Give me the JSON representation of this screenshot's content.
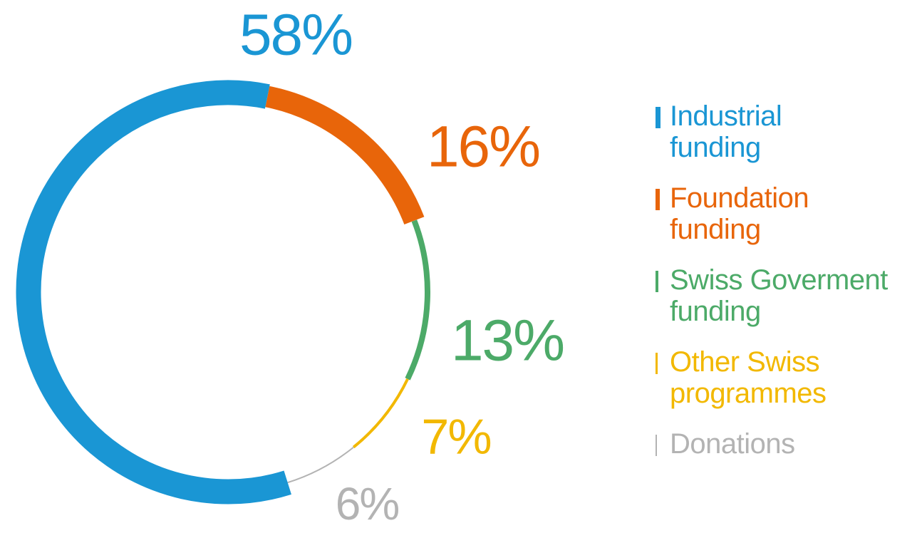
{
  "chart_data": {
    "type": "donut",
    "series": [
      {
        "name": "Industrial\nfunding",
        "color": "#1a96d4",
        "values": [
          58
        ],
        "value_labels": [
          "58%"
        ]
      },
      {
        "name": "Foundation\nfunding",
        "color": "#e8650a",
        "values": [
          16
        ],
        "value_labels": [
          "16%"
        ]
      },
      {
        "name": "Swiss Goverment\nfunding",
        "color": "#4caa68",
        "values": [
          13
        ],
        "value_labels": [
          "13%"
        ]
      },
      {
        "name": "Other Swiss\nprogrammes",
        "color": "#f2b800",
        "values": [
          7
        ],
        "value_labels": [
          "7%"
        ]
      },
      {
        "name": "Donations",
        "color": "#b3b3b3",
        "values": [
          6
        ],
        "value_labels": [
          "6%"
        ]
      }
    ]
  }
}
